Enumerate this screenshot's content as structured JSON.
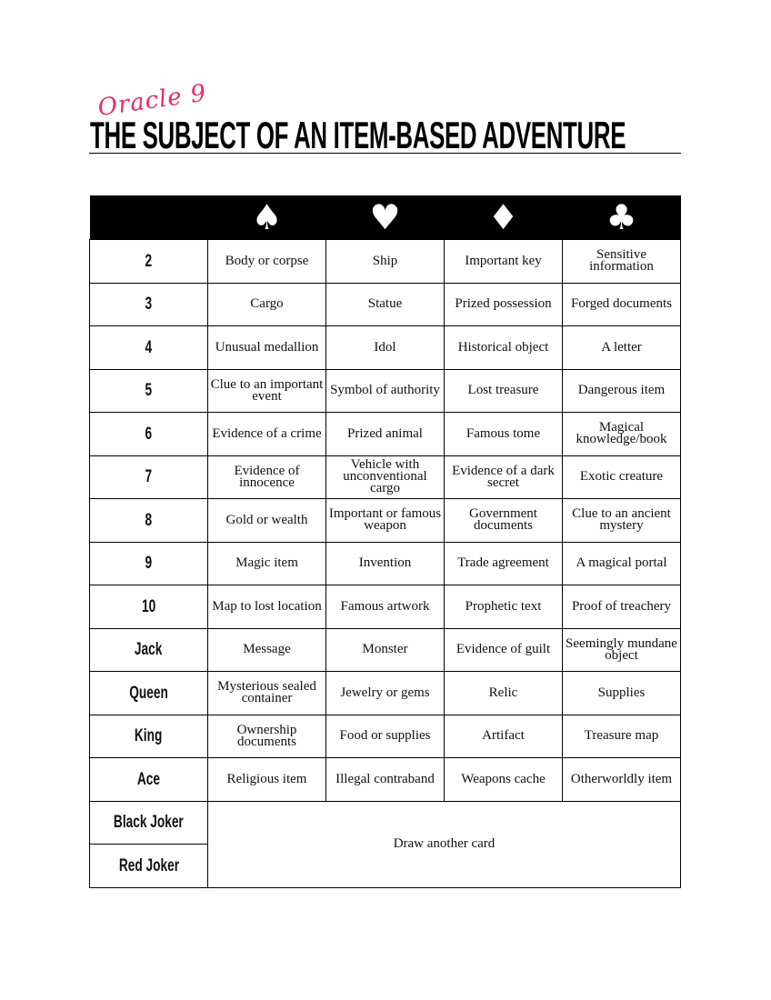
{
  "header": {
    "subtitle": "Oracle 9",
    "title": "THE SUBJECT OF AN ITEM-BASED ADVENTURE"
  },
  "suits": [
    {
      "icon": "spade-icon",
      "glyph": "♠"
    },
    {
      "icon": "heart-icon",
      "glyph": "♥"
    },
    {
      "icon": "diamond-icon",
      "glyph": "♦"
    },
    {
      "icon": "club-icon",
      "glyph": "♣"
    }
  ],
  "rows": [
    {
      "card": "2",
      "cells": [
        "Body or corpse",
        "Ship",
        "Important key",
        "Sensitive information"
      ]
    },
    {
      "card": "3",
      "cells": [
        "Cargo",
        "Statue",
        "Prized possession",
        "Forged documents"
      ]
    },
    {
      "card": "4",
      "cells": [
        "Unusual medallion",
        "Idol",
        "Historical object",
        "A letter"
      ]
    },
    {
      "card": "5",
      "cells": [
        "Clue to an important event",
        "Symbol of authority",
        "Lost treasure",
        "Dangerous item"
      ]
    },
    {
      "card": "6",
      "cells": [
        "Evidence of a crime",
        "Prized animal",
        "Famous tome",
        "Magical knowledge/book"
      ]
    },
    {
      "card": "7",
      "cells": [
        "Evidence of innocence",
        "Vehicle with unconventional cargo",
        "Evidence of a dark secret",
        "Exotic creature"
      ]
    },
    {
      "card": "8",
      "cells": [
        "Gold or wealth",
        "Important or famous weapon",
        "Government documents",
        "Clue to an ancient mystery"
      ]
    },
    {
      "card": "9",
      "cells": [
        "Magic item",
        "Invention",
        "Trade agreement",
        "A magical portal"
      ]
    },
    {
      "card": "10",
      "cells": [
        "Map to lost location",
        "Famous artwork",
        "Prophetic text",
        "Proof of treachery"
      ]
    },
    {
      "card": "Jack",
      "cells": [
        "Message",
        "Monster",
        "Evidence of guilt",
        "Seemingly mundane object"
      ]
    },
    {
      "card": "Queen",
      "cells": [
        "Mysterious sealed container",
        "Jewelry or gems",
        "Relic",
        "Supplies"
      ]
    },
    {
      "card": "King",
      "cells": [
        "Ownership documents",
        "Food or supplies",
        "Artifact",
        "Treasure map"
      ]
    },
    {
      "card": "Ace",
      "cells": [
        "Religious item",
        "Illegal contraband",
        "Weapons cache",
        "Otherworldly item"
      ]
    }
  ],
  "jokers": {
    "black": "Black Joker",
    "red": "Red Joker",
    "result": "Draw another card"
  }
}
